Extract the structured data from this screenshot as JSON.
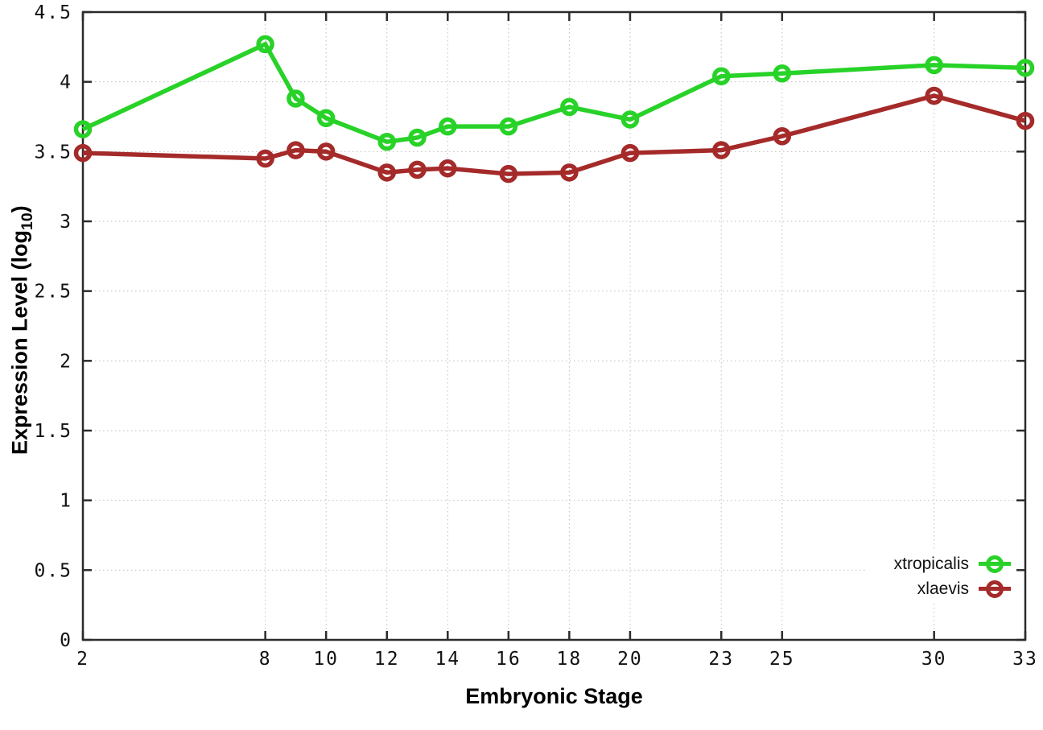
{
  "chart_data": {
    "type": "line",
    "x": [
      2,
      8,
      9,
      10,
      12,
      13,
      14,
      16,
      18,
      20,
      23,
      25,
      30,
      33
    ],
    "series": [
      {
        "name": "xtropicalis",
        "color": "#28d228",
        "values": [
          3.66,
          4.27,
          3.88,
          3.74,
          3.57,
          3.6,
          3.68,
          3.68,
          3.82,
          3.73,
          4.04,
          4.06,
          4.12,
          4.1
        ]
      },
      {
        "name": "xlaevis",
        "color": "#a52a2a",
        "values": [
          3.49,
          3.45,
          3.51,
          3.5,
          3.35,
          3.37,
          3.38,
          3.34,
          3.35,
          3.49,
          3.51,
          3.61,
          3.9,
          3.72
        ]
      }
    ],
    "title": "",
    "xlabel": "Embryonic Stage",
    "ylabel": "Expression Level (log10)",
    "xlim": [
      2,
      33
    ],
    "ylim": [
      0,
      4.5
    ],
    "xticks": [
      2,
      8,
      10,
      12,
      14,
      16,
      18,
      20,
      23,
      25,
      30,
      33
    ],
    "yticks": [
      0,
      0.5,
      1,
      1.5,
      2,
      2.5,
      3,
      3.5,
      4,
      4.5
    ],
    "grid": true,
    "grid_style": "dotted",
    "marker": "open-circle",
    "legend_position": "bottom-right-inside"
  },
  "ylabel_parts": {
    "prefix": "Expression Level (log",
    "sub": "10",
    "suffix": ")"
  },
  "xlabel_text": "Embryonic Stage",
  "legend": {
    "items": [
      {
        "label": "xtropicalis"
      },
      {
        "label": "xlaevis"
      }
    ]
  },
  "colors": {
    "background": "#ffffff",
    "axis": "#2b2b2b",
    "grid": "#bfbfbf",
    "tick_text": "#111111",
    "series_green": "#28d228",
    "series_red": "#a52a2a"
  }
}
